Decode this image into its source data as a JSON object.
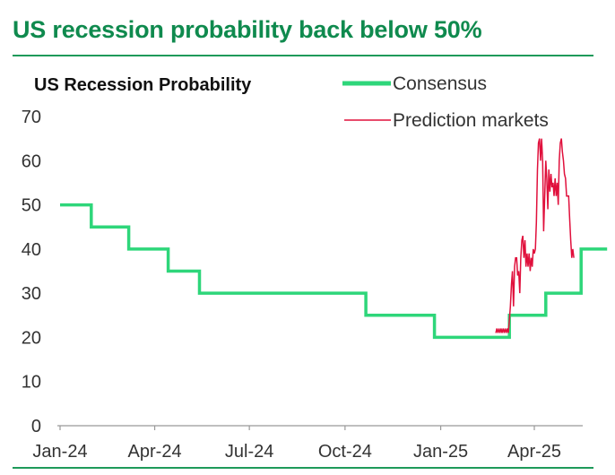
{
  "headline": "US recession probability back below 50%",
  "colors": {
    "headline": "#0f8a4e",
    "rule": "#1e9a5a",
    "consensus": "#2ed67a",
    "prediction": "#e0103c",
    "axis": "#999999",
    "text": "#333333"
  },
  "chart_data": {
    "type": "line",
    "title": "US Recession Probability",
    "xlabel": "",
    "ylabel": "",
    "ylim": [
      0,
      70
    ],
    "yticks": [
      "0",
      "10",
      "20",
      "30",
      "40",
      "50",
      "60",
      "70"
    ],
    "xticks": [
      {
        "label": "Jan-24",
        "date": "2024-01-01"
      },
      {
        "label": "Apr-24",
        "date": "2024-04-01"
      },
      {
        "label": "Jul-24",
        "date": "2024-07-01"
      },
      {
        "label": "Oct-24",
        "date": "2024-10-01"
      },
      {
        "label": "Jan-25",
        "date": "2025-01-01"
      },
      {
        "label": "Apr-25",
        "date": "2025-04-01"
      }
    ],
    "grid": false,
    "legend": "top-right",
    "series": [
      {
        "name": "Consensus",
        "step": true,
        "points": [
          [
            "2024-01-01",
            50
          ],
          [
            "2024-01-31",
            45
          ],
          [
            "2024-03-07",
            40
          ],
          [
            "2024-04-14",
            35
          ],
          [
            "2024-05-14",
            30
          ],
          [
            "2024-10-21",
            25
          ],
          [
            "2024-12-26",
            20
          ],
          [
            "2025-03-08",
            25
          ],
          [
            "2025-04-12",
            30
          ],
          [
            "2025-05-16",
            40
          ],
          [
            "2025-06-10",
            40
          ]
        ]
      },
      {
        "name": "Prediction markets",
        "step": false,
        "points": [
          [
            "2025-02-23",
            21
          ],
          [
            "2025-02-24",
            22
          ],
          [
            "2025-02-25",
            21
          ],
          [
            "2025-02-26",
            22
          ],
          [
            "2025-02-27",
            21
          ],
          [
            "2025-02-28",
            22
          ],
          [
            "2025-03-01",
            21
          ],
          [
            "2025-03-02",
            22
          ],
          [
            "2025-03-03",
            21
          ],
          [
            "2025-03-04",
            22
          ],
          [
            "2025-03-05",
            21
          ],
          [
            "2025-03-06",
            22
          ],
          [
            "2025-03-07",
            21
          ],
          [
            "2025-03-08",
            24
          ],
          [
            "2025-03-09",
            27
          ],
          [
            "2025-03-10",
            32
          ],
          [
            "2025-03-11",
            35
          ],
          [
            "2025-03-12",
            27
          ],
          [
            "2025-03-13",
            36
          ],
          [
            "2025-03-14",
            38
          ],
          [
            "2025-03-15",
            38
          ],
          [
            "2025-03-16",
            34
          ],
          [
            "2025-03-17",
            35
          ],
          [
            "2025-03-18",
            30
          ],
          [
            "2025-03-19",
            38
          ],
          [
            "2025-03-20",
            42
          ],
          [
            "2025-03-21",
            43
          ],
          [
            "2025-03-22",
            38
          ],
          [
            "2025-03-23",
            42
          ],
          [
            "2025-03-24",
            36
          ],
          [
            "2025-03-25",
            39
          ],
          [
            "2025-03-26",
            36
          ],
          [
            "2025-03-27",
            39
          ],
          [
            "2025-03-28",
            35
          ],
          [
            "2025-03-29",
            38
          ],
          [
            "2025-03-30",
            36
          ],
          [
            "2025-03-31",
            40
          ],
          [
            "2025-04-01",
            39
          ],
          [
            "2025-04-02",
            40
          ],
          [
            "2025-04-03",
            46
          ],
          [
            "2025-04-04",
            58
          ],
          [
            "2025-04-05",
            64
          ],
          [
            "2025-04-06",
            65
          ],
          [
            "2025-04-07",
            60
          ],
          [
            "2025-04-08",
            65
          ],
          [
            "2025-04-09",
            60
          ],
          [
            "2025-04-10",
            44
          ],
          [
            "2025-04-11",
            52
          ],
          [
            "2025-04-12",
            60
          ],
          [
            "2025-04-13",
            56
          ],
          [
            "2025-04-14",
            49
          ],
          [
            "2025-04-15",
            58
          ],
          [
            "2025-04-16",
            53
          ],
          [
            "2025-04-17",
            57
          ],
          [
            "2025-04-18",
            54
          ],
          [
            "2025-04-19",
            55
          ],
          [
            "2025-04-20",
            52
          ],
          [
            "2025-04-21",
            56
          ],
          [
            "2025-04-22",
            52
          ],
          [
            "2025-04-23",
            55
          ],
          [
            "2025-04-24",
            50
          ],
          [
            "2025-04-25",
            60
          ],
          [
            "2025-04-26",
            64
          ],
          [
            "2025-04-27",
            65
          ],
          [
            "2025-04-28",
            62
          ],
          [
            "2025-04-29",
            60
          ],
          [
            "2025-04-30",
            57
          ],
          [
            "2025-05-01",
            56
          ],
          [
            "2025-05-02",
            52
          ],
          [
            "2025-05-03",
            52
          ],
          [
            "2025-05-04",
            52
          ],
          [
            "2025-05-05",
            47
          ],
          [
            "2025-05-06",
            42
          ],
          [
            "2025-05-07",
            38
          ],
          [
            "2025-05-08",
            40
          ],
          [
            "2025-05-09",
            38
          ]
        ]
      }
    ]
  }
}
